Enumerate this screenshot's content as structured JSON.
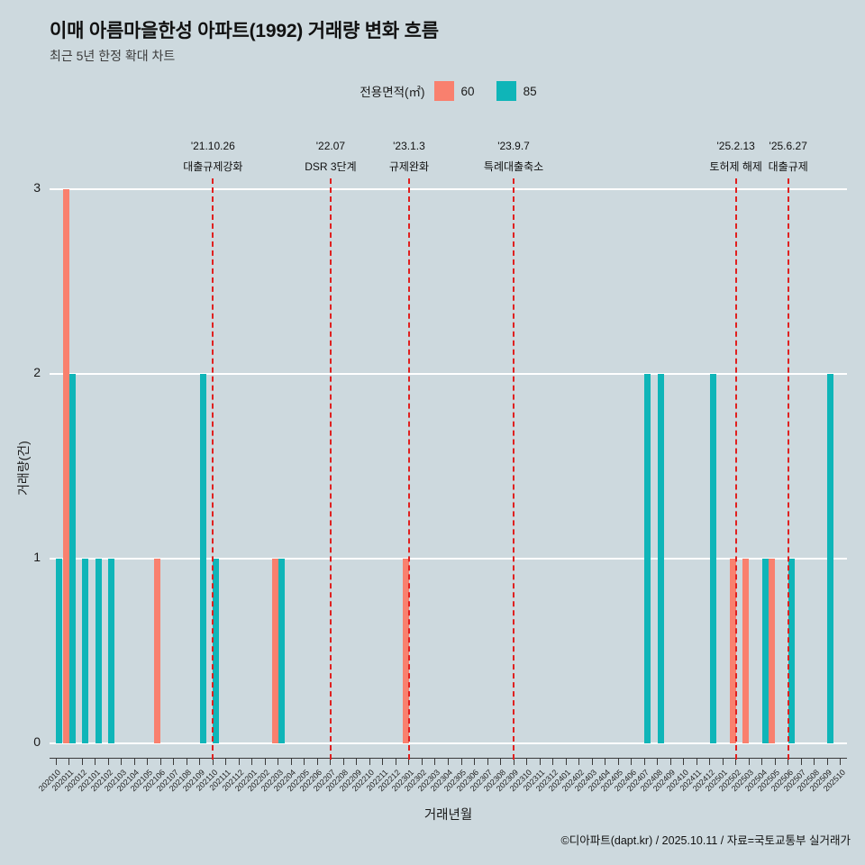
{
  "page": {
    "footer": "©디아파트(dapt.kr) / 2025.10.11 / 자료=국토교통부 실거래가"
  },
  "colors": {
    "background": "#cdd9de",
    "grid": "#ffffff",
    "area60": "#f9806e",
    "area85": "#0fb5b8",
    "event_line": "#e0201f"
  },
  "chart_data": {
    "type": "bar",
    "title": "이매 아름마을한성 아파트(1992) 거래량 변화 흐름",
    "subtitle": "최근 5년 한정 확대 차트",
    "xlabel": "거래년월",
    "ylabel": "거래량(건)",
    "ylim": [
      0,
      3
    ],
    "yticks": [
      0,
      1,
      2,
      3
    ],
    "grid": true,
    "legend": {
      "title": "전용면적(㎡)",
      "position": "top"
    },
    "categories": [
      "202010",
      "202011",
      "202012",
      "202101",
      "202102",
      "202103",
      "202104",
      "202105",
      "202106",
      "202107",
      "202108",
      "202109",
      "202110",
      "202111",
      "202112",
      "202201",
      "202202",
      "202203",
      "202204",
      "202205",
      "202206",
      "202207",
      "202208",
      "202209",
      "202210",
      "202211",
      "202212",
      "202301",
      "202302",
      "202303",
      "202304",
      "202305",
      "202306",
      "202307",
      "202308",
      "202309",
      "202310",
      "202311",
      "202312",
      "202401",
      "202402",
      "202403",
      "202404",
      "202405",
      "202406",
      "202407",
      "202408",
      "202409",
      "202410",
      "202411",
      "202412",
      "202501",
      "202502",
      "202503",
      "202504",
      "202505",
      "202506",
      "202507",
      "202508",
      "202509",
      "202510"
    ],
    "series": [
      {
        "name": "60",
        "color": "#f9806e",
        "points": {
          "202011": 3,
          "202106": 1,
          "202203": 1,
          "202301": 1,
          "202502": 1,
          "202503": 1,
          "202505": 1
        }
      },
      {
        "name": "85",
        "color": "#0fb5b8",
        "points": {
          "202010": 1,
          "202011": 2,
          "202012": 1,
          "202101": 1,
          "202102": 1,
          "202109": 2,
          "202110": 1,
          "202203": 1,
          "202407": 2,
          "202408": 2,
          "202412": 2,
          "202504": 1,
          "202506": 1,
          "202509": 2
        }
      }
    ],
    "event_lines": [
      {
        "date": "'21.10.26",
        "label": "대출규제강화",
        "month": "202110"
      },
      {
        "date": "'22.07",
        "label": "DSR 3단계",
        "month": "202207"
      },
      {
        "date": "'23.1.3",
        "label": "규제완화",
        "month": "202301"
      },
      {
        "date": "'23.9.7",
        "label": "특례대출축소",
        "month": "202309"
      },
      {
        "date": "'25.2.13",
        "label": "토허제 해제",
        "month": "202502"
      },
      {
        "date": "'25.6.27",
        "label": "대출규제",
        "month": "202506"
      }
    ]
  }
}
